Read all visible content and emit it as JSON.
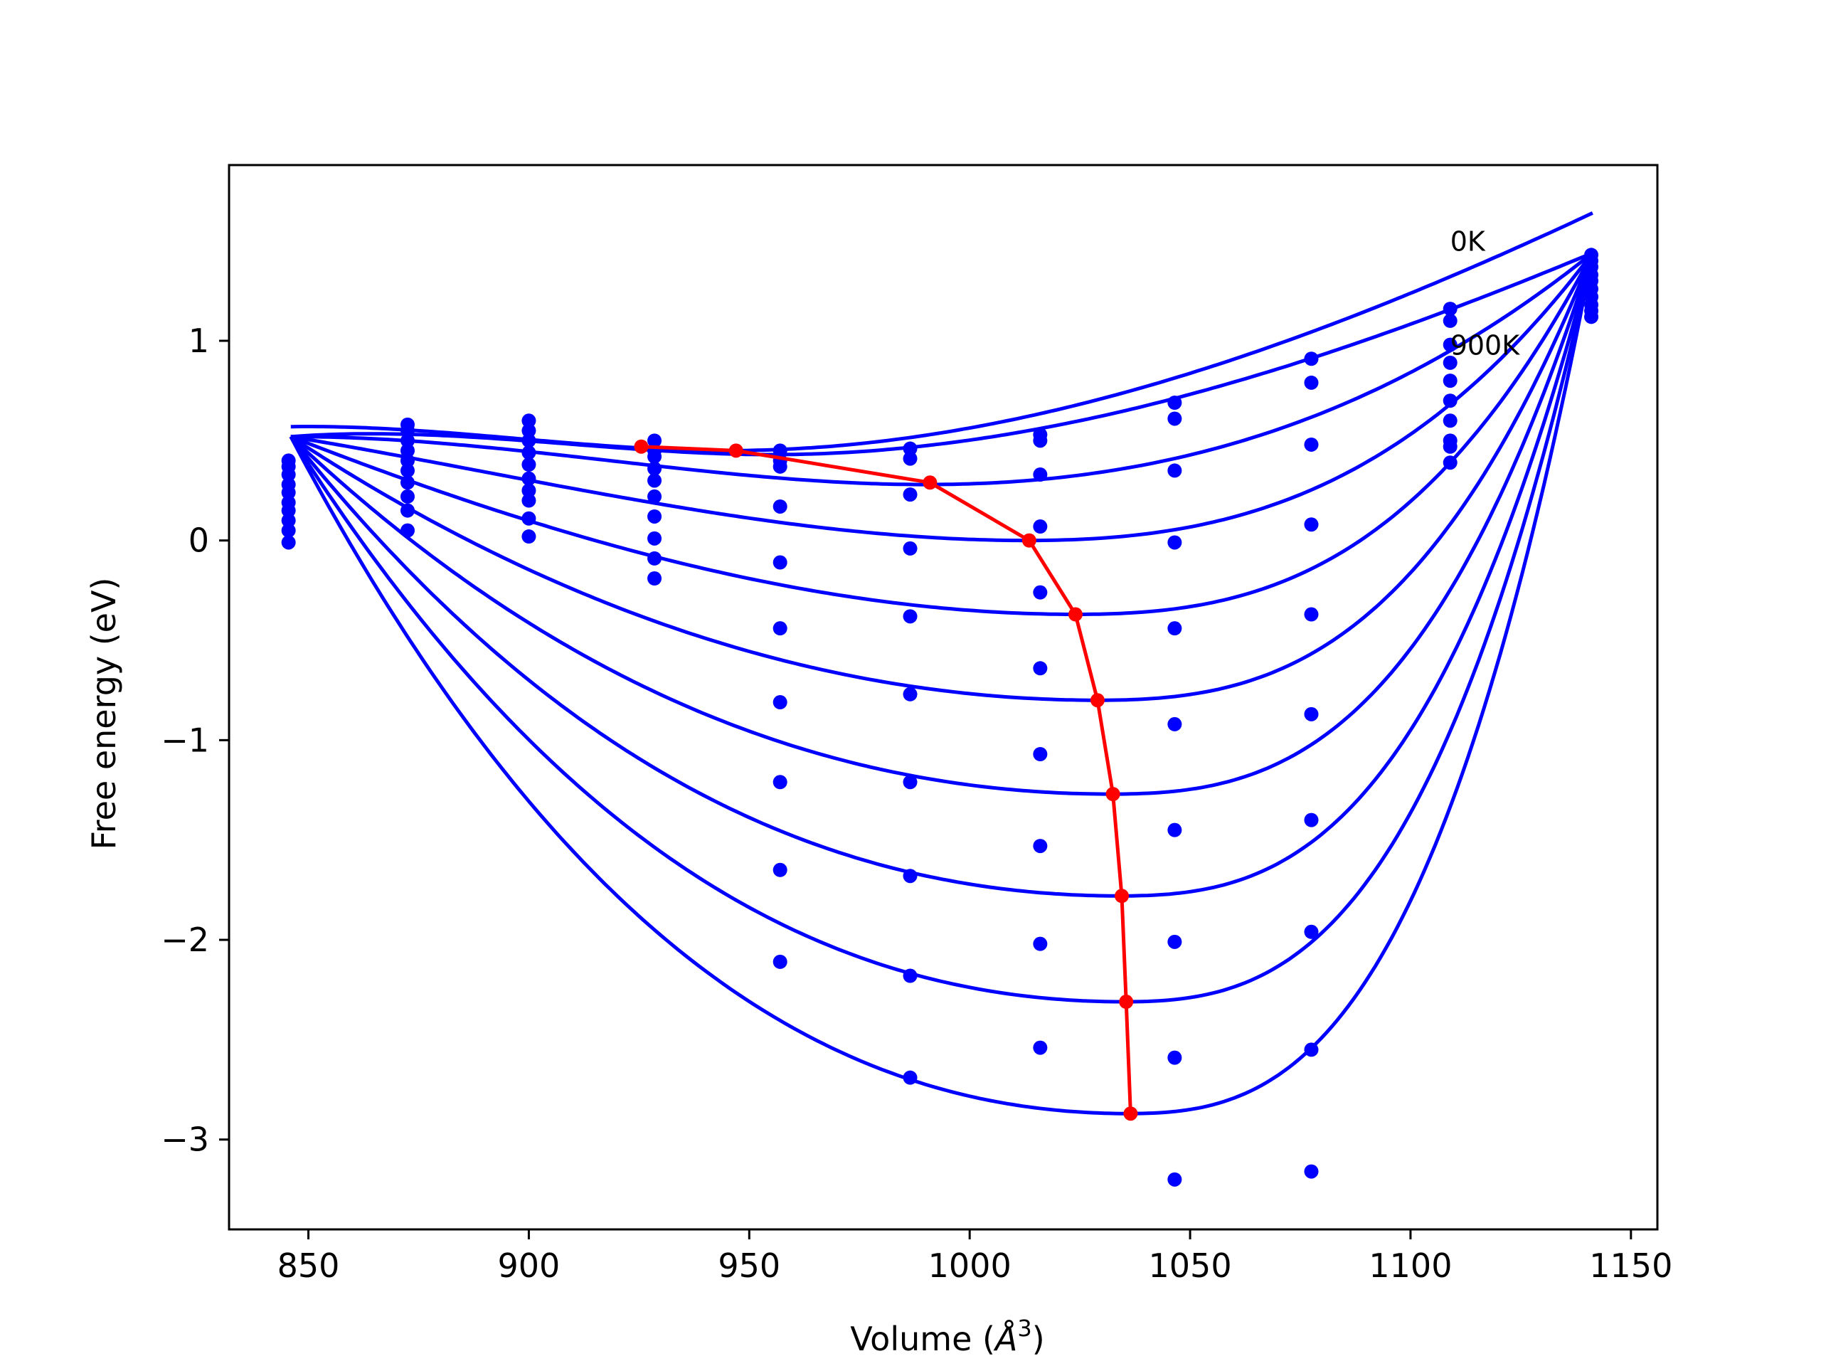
{
  "chart_data": {
    "type": "scatter",
    "title": "",
    "xlabel": "Volume (",
    "xlabel_unit": "Å",
    "xlabel_sup": "3",
    "xlabel_close": ")",
    "ylabel": "Free energy (eV)",
    "xlim": [
      832,
      1156
    ],
    "ylim": [
      -3.45,
      1.88
    ],
    "xticks": [
      850,
      900,
      950,
      1000,
      1050,
      1100,
      1150
    ],
    "yticks": [
      -3,
      -2,
      -1,
      0,
      1
    ],
    "ytick_labels": [
      "−3",
      "−2",
      "−1",
      "0",
      "1"
    ],
    "grid": false,
    "annotations": [
      {
        "text": "0K",
        "x": 1109,
        "y": 1.5
      },
      {
        "text": "900K",
        "x": 1109,
        "y": 0.98
      }
    ],
    "colors": {
      "fit": "#0000ff",
      "points": "#0000ff",
      "minimum": "#ff0000"
    },
    "volumes": [
      845.5,
      872.5,
      900.0,
      928.5,
      957.0,
      986.5,
      1016.0,
      1046.5,
      1077.5,
      1109.0,
      1141.0
    ],
    "temperature_series": [
      {
        "energies": [
          0.4,
          0.58,
          0.6,
          0.5,
          0.45,
          0.46,
          0.53,
          0.69,
          0.91,
          1.16,
          1.43
        ]
      },
      {
        "energies": [
          0.37,
          0.55,
          0.55,
          0.45,
          0.4,
          0.41,
          0.5,
          0.61,
          0.79,
          1.1,
          1.4
        ]
      },
      {
        "energies": [
          0.33,
          0.5,
          0.5,
          0.42,
          0.37,
          0.23,
          0.33,
          0.35,
          0.48,
          0.98,
          1.37
        ]
      },
      {
        "energies": [
          0.28,
          0.45,
          0.44,
          0.36,
          0.17,
          -0.04,
          0.07,
          -0.01,
          0.08,
          0.89,
          1.33
        ]
      },
      {
        "energies": [
          0.24,
          0.4,
          0.38,
          0.3,
          -0.11,
          -0.38,
          -0.26,
          -0.44,
          -0.37,
          0.8,
          1.3
        ]
      },
      {
        "energies": [
          0.19,
          0.35,
          0.31,
          0.22,
          -0.44,
          -0.77,
          -0.64,
          -0.92,
          -0.87,
          0.7,
          1.26
        ]
      },
      {
        "energies": [
          0.15,
          0.29,
          0.25,
          0.12,
          -0.81,
          -1.21,
          -1.07,
          -1.45,
          -1.4,
          0.6,
          1.22
        ]
      },
      {
        "energies": [
          0.1,
          0.22,
          0.2,
          0.01,
          -1.21,
          -1.68,
          -1.53,
          -2.01,
          -1.96,
          0.5,
          1.18
        ]
      },
      {
        "energies": [
          0.05,
          0.15,
          0.11,
          -0.09,
          -1.65,
          -2.18,
          -2.02,
          -2.59,
          -2.55,
          0.47,
          1.15
        ]
      },
      {
        "energies": [
          -0.01,
          0.05,
          0.02,
          -0.19,
          -2.11,
          -2.69,
          -2.54,
          -3.2,
          -3.16,
          0.39,
          1.12
        ]
      }
    ],
    "fit_curves": [
      {
        "v0": 945,
        "e0": 0.45,
        "c": 4e-05
      },
      {
        "v0": 955,
        "e0": 0.43,
        "c": 3.8e-05
      },
      {
        "v0": 990,
        "e0": 0.28,
        "c": 3.5e-05
      },
      {
        "v0": 1013,
        "e0": 0.0,
        "c": 3.4e-05
      },
      {
        "v0": 1024,
        "e0": -0.37,
        "c": 3.6e-05
      },
      {
        "v0": 1029,
        "e0": -0.8,
        "c": 3.9e-05
      },
      {
        "v0": 1032,
        "e0": -1.27,
        "c": 4.3e-05
      },
      {
        "v0": 1034,
        "e0": -1.78,
        "c": 4.8e-05
      },
      {
        "v0": 1035,
        "e0": -2.31,
        "c": 5.4e-05
      },
      {
        "v0": 1036,
        "e0": -2.87,
        "c": 6.1e-05
      }
    ],
    "minimum_path": {
      "x": [
        925.5,
        947.0,
        991.0,
        1013.5,
        1024.0,
        1029.0,
        1032.5,
        1034.5,
        1035.5,
        1036.5
      ],
      "y": [
        0.47,
        0.45,
        0.29,
        0.0,
        -0.37,
        -0.8,
        -1.27,
        -1.78,
        -2.31,
        -2.87
      ]
    }
  }
}
